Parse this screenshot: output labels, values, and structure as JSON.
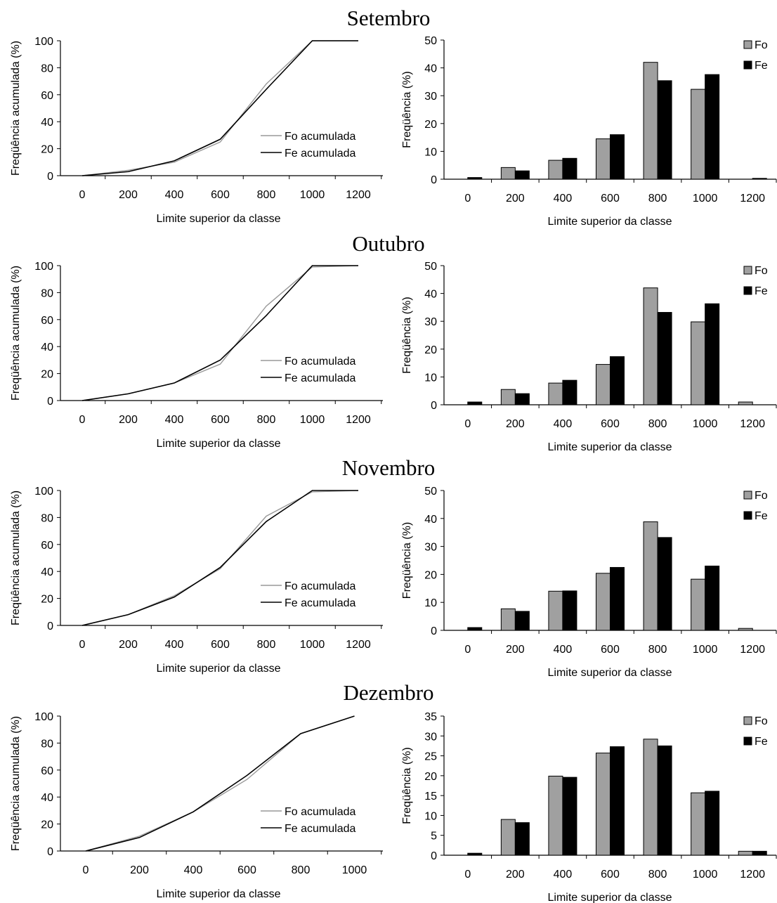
{
  "chart_data": [
    {
      "month": "Setembro",
      "cumulative": {
        "type": "line",
        "ylabel": "Freqüência acumulada (%)",
        "xlabel": "Limite superior da classe",
        "ylim": [
          0,
          100
        ],
        "yticks": [
          "0",
          "20",
          "40",
          "60",
          "80",
          "100"
        ],
        "xticks": [
          "0",
          "200",
          "400",
          "600",
          "800",
          "1000",
          "1200"
        ],
        "x": [
          0,
          200,
          400,
          600,
          800,
          1000,
          1200
        ],
        "series": [
          {
            "name": "Fo acumulada",
            "color": "#999999",
            "values": [
              0,
              4,
              10,
              25,
              68,
              100,
              100
            ]
          },
          {
            "name": "Fe acumulada",
            "color": "#000000",
            "values": [
              0,
              3,
              11,
              27,
              64,
              100,
              100
            ]
          }
        ]
      },
      "histogram": {
        "type": "bar",
        "ylabel": "Freqüência (%)",
        "xlabel": "Limite superior da classe",
        "ylim": [
          0,
          50
        ],
        "yticks": [
          "0",
          "10",
          "20",
          "30",
          "40",
          "50"
        ],
        "categories": [
          "0",
          "200",
          "400",
          "600",
          "800",
          "1000",
          "1200"
        ],
        "series": [
          {
            "name": "Fo",
            "color": "#a0a0a0",
            "values": [
              0,
              4.2,
              6.8,
              14.5,
              42,
              32.3,
              0
            ]
          },
          {
            "name": "Fe",
            "color": "#000000",
            "values": [
              0.6,
              3,
              7.5,
              16,
              35.4,
              37.6,
              0.3
            ]
          }
        ]
      }
    },
    {
      "month": "Outubro",
      "cumulative": {
        "type": "line",
        "ylabel": "Freqüência acumulada (%)",
        "xlabel": "Limite superior da classe",
        "ylim": [
          0,
          100
        ],
        "yticks": [
          "0",
          "20",
          "40",
          "60",
          "80",
          "100"
        ],
        "xticks": [
          "0",
          "200",
          "400",
          "600",
          "800",
          "1000",
          "1200"
        ],
        "x": [
          0,
          200,
          400,
          600,
          800,
          1000,
          1200
        ],
        "series": [
          {
            "name": "Fo acumulada",
            "color": "#999999",
            "values": [
              0,
              5,
              13,
              27,
              70,
              99,
              100
            ]
          },
          {
            "name": "Fe acumulada",
            "color": "#000000",
            "values": [
              0,
              5,
              13,
              30,
              63,
              100,
              100
            ]
          }
        ]
      },
      "histogram": {
        "type": "bar",
        "ylabel": "Freqüência (%)",
        "xlabel": "Limite superior da classe",
        "ylim": [
          0,
          50
        ],
        "yticks": [
          "0",
          "10",
          "20",
          "30",
          "40",
          "50"
        ],
        "categories": [
          "0",
          "200",
          "400",
          "600",
          "800",
          "1000",
          "1200"
        ],
        "series": [
          {
            "name": "Fo",
            "color": "#a0a0a0",
            "values": [
              0,
              5.5,
              7.8,
              14.5,
              42,
              29.8,
              1
            ]
          },
          {
            "name": "Fe",
            "color": "#000000",
            "values": [
              1,
              4,
              8.8,
              17.3,
              33.2,
              36.3,
              0
            ]
          }
        ]
      }
    },
    {
      "month": "Novembro",
      "cumulative": {
        "type": "line",
        "ylabel": "Freqüência acumulada (%)",
        "xlabel": "Limite superior da classe",
        "ylim": [
          0,
          100
        ],
        "yticks": [
          "0",
          "20",
          "40",
          "60",
          "80",
          "100"
        ],
        "xticks": [
          "0",
          "200",
          "400",
          "600",
          "800",
          "1000",
          "1200"
        ],
        "x": [
          0,
          200,
          400,
          600,
          800,
          1000,
          1200
        ],
        "series": [
          {
            "name": "Fo acumulada",
            "color": "#999999",
            "values": [
              0,
              8,
              22,
              42,
              81,
              99,
              100
            ]
          },
          {
            "name": "Fe acumulada",
            "color": "#000000",
            "values": [
              0,
              8,
              21,
              43,
              77,
              100,
              100
            ]
          }
        ]
      },
      "histogram": {
        "type": "bar",
        "ylabel": "Freqüência (%)",
        "xlabel": "Limite superior da classe",
        "ylim": [
          0,
          50
        ],
        "yticks": [
          "0",
          "10",
          "20",
          "30",
          "40",
          "50"
        ],
        "categories": [
          "0",
          "200",
          "400",
          "600",
          "800",
          "1000",
          "1200"
        ],
        "series": [
          {
            "name": "Fo",
            "color": "#a0a0a0",
            "values": [
              0,
              7.7,
              14,
              20.4,
              38.8,
              18.3,
              0.7
            ]
          },
          {
            "name": "Fe",
            "color": "#000000",
            "values": [
              1,
              6.8,
              14.1,
              22.5,
              33.2,
              23,
              0
            ]
          }
        ]
      }
    },
    {
      "month": "Dezembro",
      "cumulative": {
        "type": "line",
        "ylabel": "Freqüência acumulada (%)",
        "xlabel": "Limite superior da classe",
        "ylim": [
          0,
          100
        ],
        "yticks": [
          "0",
          "20",
          "40",
          "60",
          "80",
          "100"
        ],
        "xticks": [
          "0",
          "200",
          "400",
          "600",
          "800",
          "1000"
        ],
        "x": [
          0,
          200,
          400,
          600,
          800,
          1000
        ],
        "series": [
          {
            "name": "Fo acumulada",
            "color": "#999999",
            "values": [
              0,
              11,
              29,
              53,
              87,
              100
            ]
          },
          {
            "name": "Fe acumulada",
            "color": "#000000",
            "values": [
              0,
              10,
              29,
              56,
              87,
              100
            ]
          }
        ]
      },
      "histogram": {
        "type": "bar",
        "ylabel": "Freqüência (%)",
        "xlabel": "Limite superior da classe",
        "ylim": [
          0,
          35
        ],
        "yticks": [
          "0",
          "5",
          "10",
          "15",
          "20",
          "25",
          "30",
          "35"
        ],
        "categories": [
          "0",
          "200",
          "400",
          "600",
          "800",
          "1000",
          "1200"
        ],
        "series": [
          {
            "name": "Fo",
            "color": "#a0a0a0",
            "values": [
              0,
              9,
              19.9,
              25.7,
              29.2,
              15.7,
              1
            ]
          },
          {
            "name": "Fe",
            "color": "#000000",
            "values": [
              0.5,
              8.2,
              19.6,
              27.3,
              27.5,
              16.1,
              1
            ]
          }
        ]
      }
    }
  ]
}
